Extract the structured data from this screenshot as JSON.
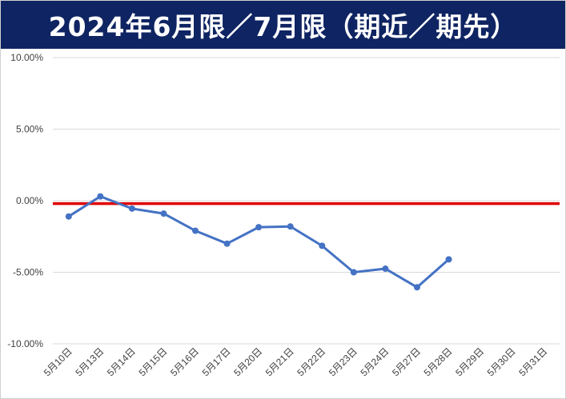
{
  "chart_data": {
    "type": "line",
    "title": "2024年6月限／7月限（期近／期先）",
    "categories": [
      "5月10日",
      "5月13日",
      "5月14日",
      "5月15日",
      "5月16日",
      "5月17日",
      "5月20日",
      "5月21日",
      "5月22日",
      "5月23日",
      "5月24日",
      "5月27日",
      "5月28日",
      "5月29日",
      "5月30日",
      "5月31日"
    ],
    "series": [
      {
        "values": [
          -1.1,
          0.3,
          -0.55,
          -0.9,
          -2.1,
          -3.0,
          -1.85,
          -1.8,
          -3.15,
          -5.0,
          -4.75,
          -6.05,
          -4.1,
          null,
          null,
          null
        ],
        "color": "#4472c4"
      }
    ],
    "reference_line": {
      "value": -0.2,
      "color": "#e00000"
    },
    "ylim": [
      -10,
      10
    ],
    "yticks": [
      "10.00%",
      "5.00%",
      "0.00%",
      "-5.00%",
      "-10.00%"
    ],
    "ytick_values": [
      10,
      5,
      0,
      -5,
      -10
    ],
    "grid": true,
    "xlabel": "",
    "ylabel": ""
  }
}
